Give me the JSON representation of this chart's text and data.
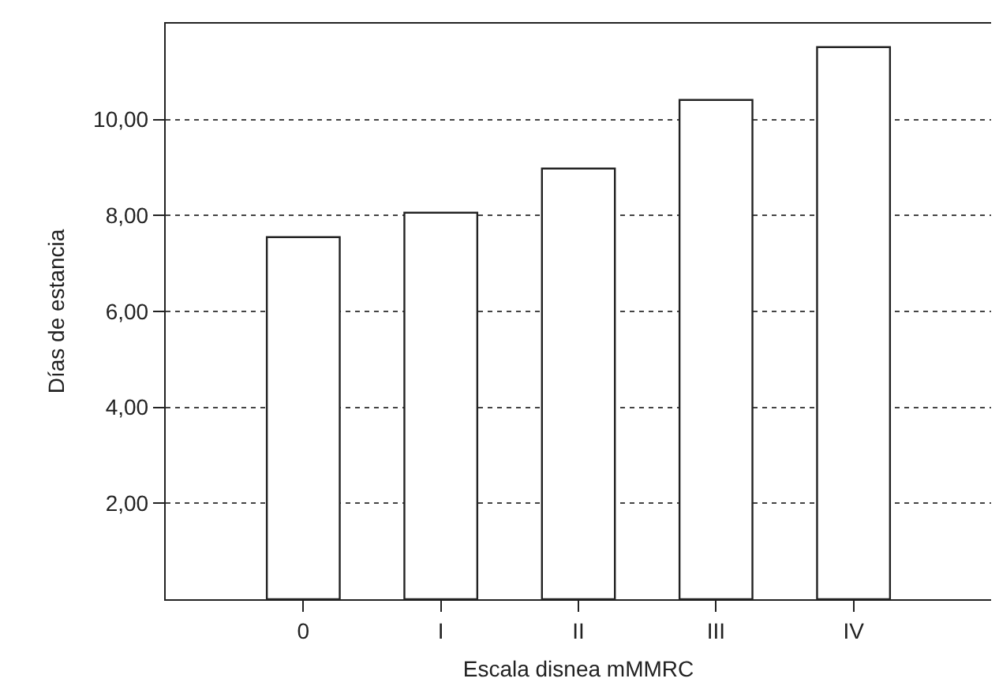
{
  "chart_data": {
    "type": "bar",
    "xlabel": "Escala disnea mMMRC",
    "ylabel": "Días de estancia",
    "categories": [
      "0",
      "I",
      "II",
      "III",
      "IV"
    ],
    "values": [
      7.55,
      8.06,
      8.98,
      10.41,
      11.51
    ],
    "color": "#ffffff",
    "ylim": [
      0,
      12
    ],
    "yticks": [
      {
        "value": 2,
        "label": "2,00"
      },
      {
        "value": 4,
        "label": "4,00"
      },
      {
        "value": 6,
        "label": "6,00"
      },
      {
        "value": 8,
        "label": "8,00"
      },
      {
        "value": 10,
        "label": "10,00"
      }
    ],
    "grid": "y",
    "line_style": "dotted"
  }
}
